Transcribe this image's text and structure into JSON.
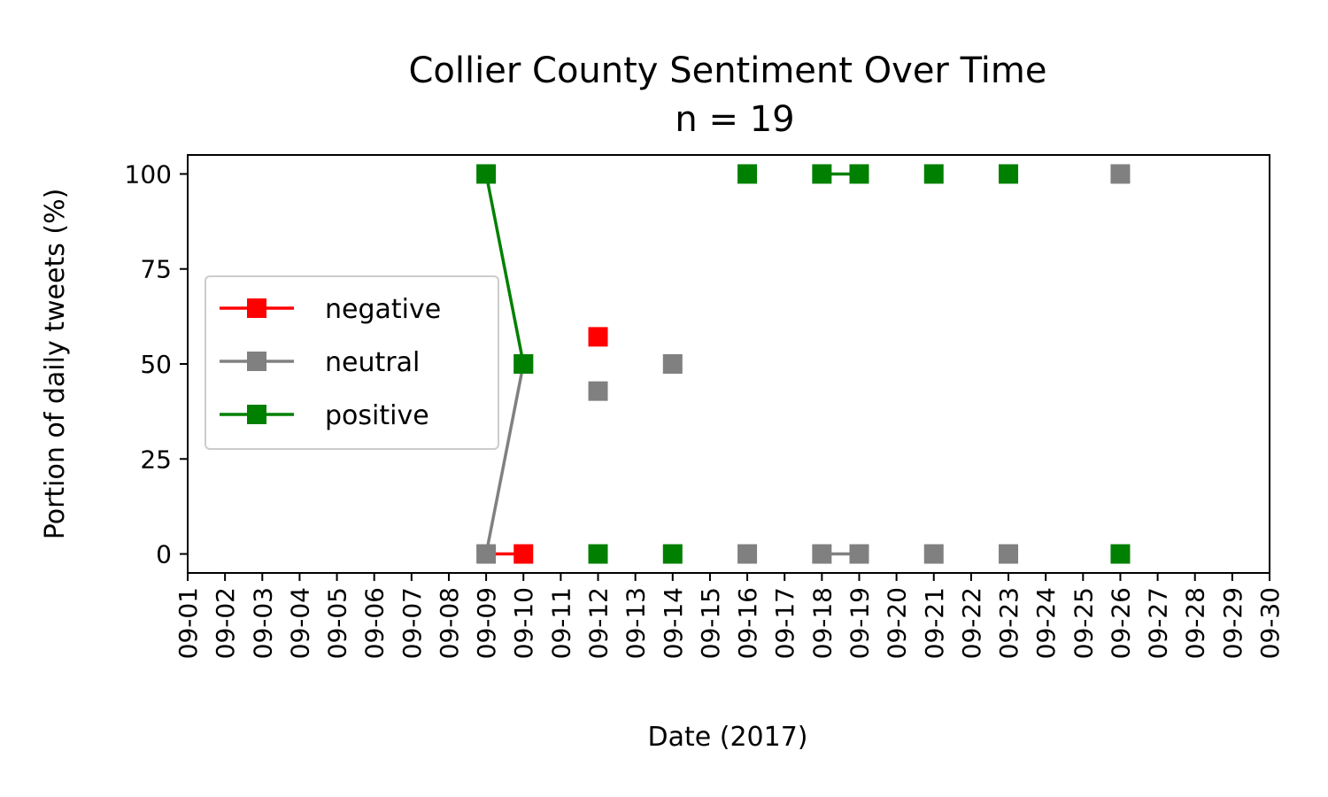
{
  "chart_data": {
    "type": "line",
    "title": "Collier County Sentiment Over Time",
    "subtitle": "n = 19",
    "xlabel": "Date (2017)",
    "ylabel": "Portion of daily tweets (%)",
    "x_ticks": [
      "09-01",
      "09-02",
      "09-03",
      "09-04",
      "09-05",
      "09-06",
      "09-07",
      "09-08",
      "09-09",
      "09-10",
      "09-11",
      "09-12",
      "09-13",
      "09-14",
      "09-15",
      "09-16",
      "09-17",
      "09-18",
      "09-19",
      "09-20",
      "09-21",
      "09-22",
      "09-23",
      "09-24",
      "09-25",
      "09-26",
      "09-27",
      "09-28",
      "09-29",
      "09-30"
    ],
    "y_ticks": [
      0,
      25,
      50,
      75,
      100
    ],
    "xlim": [
      "09-01",
      "09-30"
    ],
    "ylim": [
      -5,
      105
    ],
    "grid": false,
    "legend_position": "center-left",
    "series": [
      {
        "name": "negative",
        "color": "#ff0000",
        "points": [
          {
            "x": "09-09",
            "y": null
          },
          {
            "x": "09-10",
            "y": 0
          },
          {
            "x": "09-12",
            "y": 57.14
          },
          {
            "x": "09-14",
            "y": null
          },
          {
            "x": "09-16",
            "y": null
          },
          {
            "x": "09-18",
            "y": null
          },
          {
            "x": "09-19",
            "y": null
          },
          {
            "x": "09-21",
            "y": null
          },
          {
            "x": "09-23",
            "y": null
          },
          {
            "x": "09-26",
            "y": null
          }
        ],
        "line_segments": [
          [
            "09-09",
            "09-10"
          ]
        ],
        "segment_values": [
          [
            0,
            0
          ]
        ]
      },
      {
        "name": "neutral",
        "color": "#808080",
        "points": [
          {
            "x": "09-09",
            "y": 0
          },
          {
            "x": "09-10",
            "y": 50
          },
          {
            "x": "09-12",
            "y": 42.86
          },
          {
            "x": "09-14",
            "y": 50
          },
          {
            "x": "09-16",
            "y": 0
          },
          {
            "x": "09-18",
            "y": 0
          },
          {
            "x": "09-19",
            "y": 0
          },
          {
            "x": "09-21",
            "y": 0
          },
          {
            "x": "09-23",
            "y": 0
          },
          {
            "x": "09-26",
            "y": 100
          }
        ],
        "line_segments": [
          [
            "09-09",
            "09-10"
          ],
          [
            "09-18",
            "09-19"
          ]
        ]
      },
      {
        "name": "positive",
        "color": "#008000",
        "points": [
          {
            "x": "09-09",
            "y": 100
          },
          {
            "x": "09-10",
            "y": 50
          },
          {
            "x": "09-12",
            "y": 0
          },
          {
            "x": "09-14",
            "y": 0
          },
          {
            "x": "09-16",
            "y": 100
          },
          {
            "x": "09-18",
            "y": 100
          },
          {
            "x": "09-19",
            "y": 100
          },
          {
            "x": "09-21",
            "y": 100
          },
          {
            "x": "09-23",
            "y": 100
          },
          {
            "x": "09-26",
            "y": 0
          }
        ],
        "line_segments": [
          [
            "09-09",
            "09-10"
          ],
          [
            "09-18",
            "09-19"
          ]
        ]
      }
    ]
  }
}
